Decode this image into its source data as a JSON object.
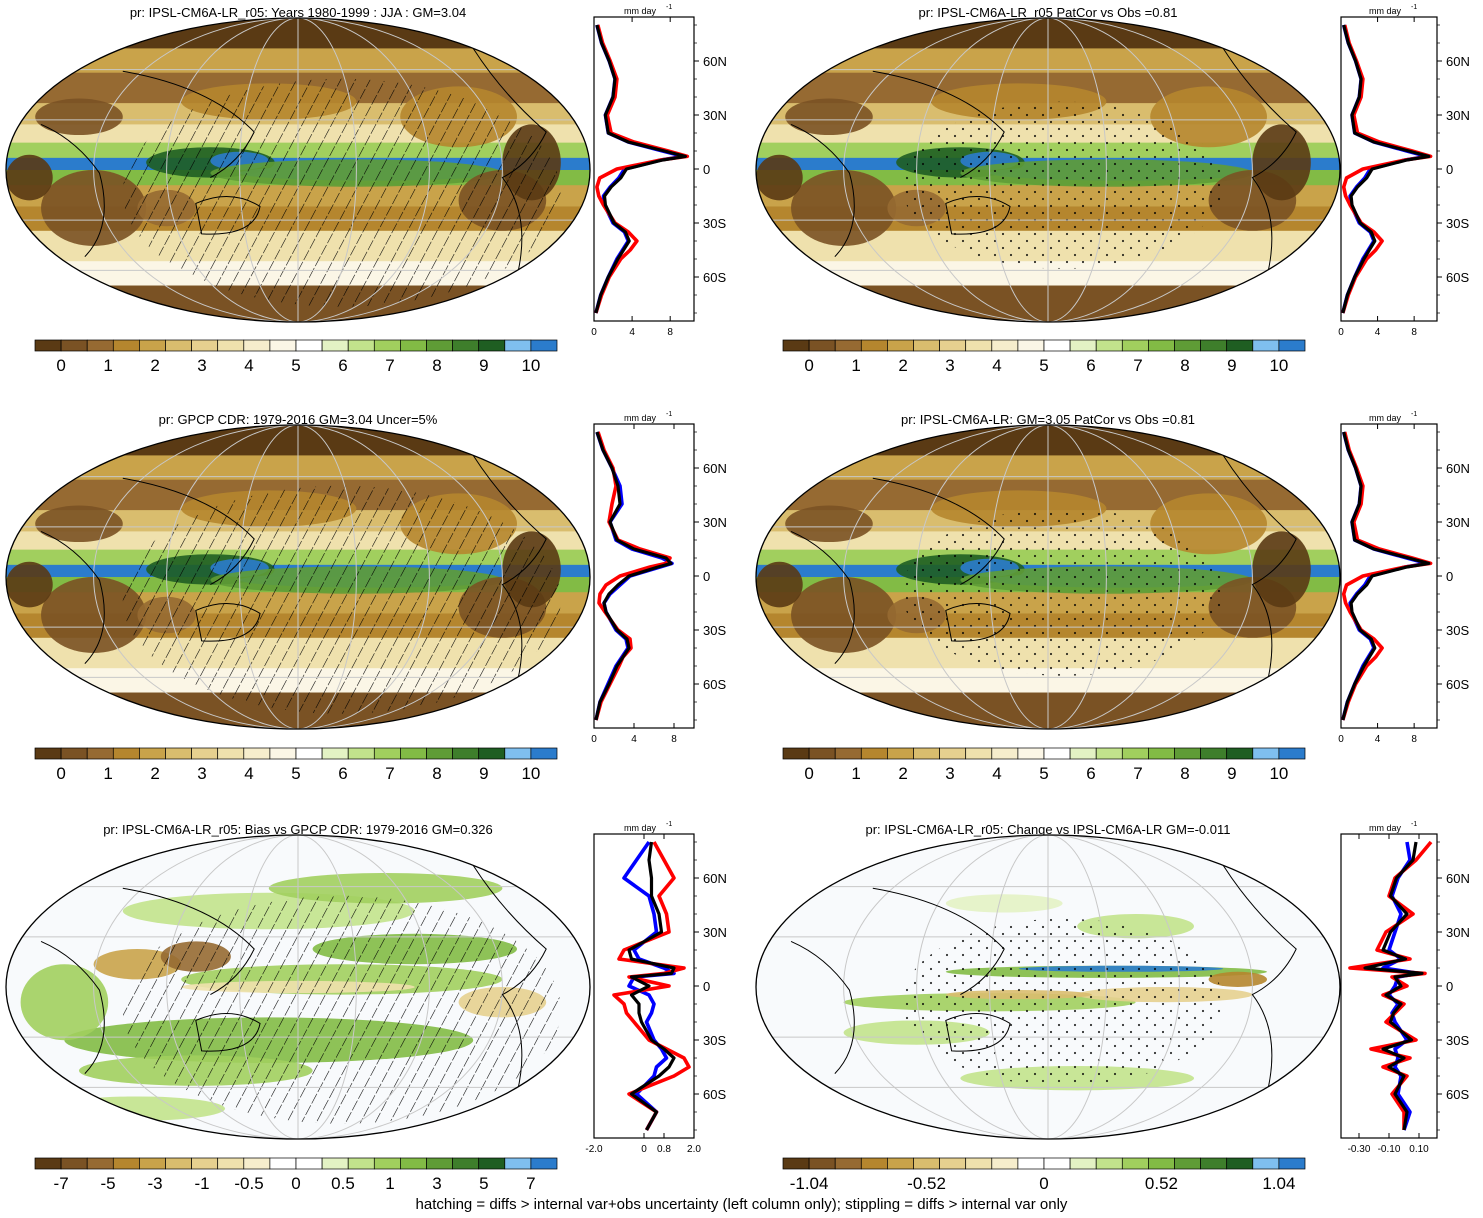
{
  "footer": "hatching = diffs > internal var+obs uncertainty (left column only); stippling = diffs > internal var only",
  "colors": {
    "series_blue": "#0000ff",
    "series_red": "#ff0000",
    "series_black": "#000000",
    "precip_ramp": [
      "#5a3a14",
      "#7a5224",
      "#966a32",
      "#b5862e",
      "#c9a34a",
      "#d9bd6e",
      "#e6d08f",
      "#efe1ad",
      "#f6edcc",
      "#fbf6e6",
      "#ffffff",
      "#e3f2c4",
      "#c2e38c",
      "#a1cf5e",
      "#82bb45",
      "#5f9c36",
      "#3e7e2b",
      "#1f5e22",
      "#7fbfef",
      "#2b7ccc"
    ],
    "diff_ramp": [
      "#5a3a14",
      "#7a5224",
      "#966a32",
      "#b5862e",
      "#c9a34a",
      "#d9bd6e",
      "#e6d08f",
      "#efe1ad",
      "#f6edcc",
      "#ffffff",
      "#ffffff",
      "#e3f2c4",
      "#c2e38c",
      "#a1cf5e",
      "#82bb45",
      "#5f9c36",
      "#3e7e2b",
      "#1f5e22",
      "#7fbfef",
      "#2b7ccc"
    ]
  },
  "chart_data": [
    {
      "type": "heatmap",
      "title": "pr: IPSL-CM6A-LR_r05: Years 1980-1999 : JJA : GM=3.04",
      "colorbar_ticks": [
        "0",
        "1",
        "2",
        "3",
        "4",
        "5",
        "6",
        "7",
        "8",
        "9",
        "10"
      ],
      "colorbar_kind": "precip",
      "pattern": "hatching",
      "profile": {
        "unit_label": "mm day",
        "unit_exp": "-1",
        "lat_ticks": [
          "60N",
          "30N",
          "0",
          "30S",
          "60S"
        ],
        "x_ticks": [
          "0",
          "4",
          "8"
        ],
        "xlim": [
          0,
          10.5
        ],
        "lat": [
          80,
          70,
          60,
          50,
          40,
          30,
          20,
          15,
          10,
          7,
          5,
          0,
          -5,
          -10,
          -15,
          -20,
          -30,
          -35,
          -40,
          -45,
          -50,
          -60,
          -70,
          -80
        ],
        "series": [
          {
            "color": "blue",
            "values": [
              0.3,
              0.8,
              1.6,
              2.2,
              2.0,
              1.2,
              1.5,
              3.6,
              7.2,
              9.4,
              7.0,
              3.2,
              2.6,
              1.7,
              1.0,
              1.1,
              2.0,
              3.2,
              3.6,
              3.0,
              2.4,
              1.5,
              0.7,
              0.2
            ]
          },
          {
            "color": "red",
            "values": [
              0.4,
              0.9,
              1.7,
              2.4,
              2.2,
              1.4,
              1.8,
              4.2,
              7.8,
              9.8,
              7.0,
              2.4,
              0.6,
              0.3,
              0.5,
              1.0,
              2.2,
              3.6,
              4.5,
              3.8,
              2.8,
              1.6,
              0.8,
              0.2
            ]
          },
          {
            "color": "black",
            "values": [
              0.3,
              0.8,
              1.6,
              2.2,
              2.0,
              1.2,
              1.5,
              3.6,
              7.4,
              9.6,
              7.2,
              3.4,
              2.8,
              1.8,
              1.1,
              1.2,
              2.1,
              3.3,
              3.7,
              3.1,
              2.5,
              1.5,
              0.7,
              0.2
            ]
          }
        ]
      }
    },
    {
      "type": "heatmap",
      "title": "pr: IPSL-CM6A-LR_r05 PatCor vs Obs =0.81",
      "colorbar_ticks": [
        "0",
        "1",
        "2",
        "3",
        "4",
        "5",
        "6",
        "7",
        "8",
        "9",
        "10"
      ],
      "colorbar_kind": "precip",
      "pattern": "stipple",
      "profile": {
        "unit_label": "mm day",
        "unit_exp": "-1",
        "lat_ticks": [
          "60N",
          "30N",
          "0",
          "30S",
          "60S"
        ],
        "x_ticks": [
          "0",
          "4",
          "8"
        ],
        "xlim": [
          0,
          10.5
        ],
        "lat": [
          80,
          70,
          60,
          50,
          40,
          30,
          20,
          15,
          10,
          7,
          5,
          0,
          -5,
          -10,
          -15,
          -20,
          -30,
          -35,
          -40,
          -45,
          -50,
          -60,
          -70,
          -80
        ],
        "series": [
          {
            "color": "blue",
            "values": [
              0.3,
              0.8,
              1.6,
              2.2,
              2.0,
              1.2,
              1.5,
              3.6,
              7.2,
              9.4,
              7.0,
              3.2,
              2.6,
              1.7,
              1.0,
              1.1,
              2.0,
              3.2,
              3.6,
              3.0,
              2.4,
              1.5,
              0.7,
              0.2
            ]
          },
          {
            "color": "red",
            "values": [
              0.4,
              0.9,
              1.7,
              2.4,
              2.2,
              1.4,
              1.8,
              4.2,
              7.8,
              9.8,
              7.0,
              2.4,
              0.6,
              0.3,
              0.5,
              1.0,
              2.2,
              3.6,
              4.5,
              3.8,
              2.8,
              1.6,
              0.8,
              0.2
            ]
          },
          {
            "color": "black",
            "values": [
              0.3,
              0.8,
              1.6,
              2.2,
              2.0,
              1.2,
              1.5,
              3.6,
              7.4,
              9.6,
              7.2,
              3.4,
              2.8,
              1.8,
              1.1,
              1.2,
              2.1,
              3.3,
              3.7,
              3.1,
              2.5,
              1.5,
              0.7,
              0.2
            ]
          }
        ]
      }
    },
    {
      "type": "heatmap",
      "title": "pr: GPCP CDR: 1979-2016 GM=3.04 Uncer=5%",
      "colorbar_ticks": [
        "0",
        "1",
        "2",
        "3",
        "4",
        "5",
        "6",
        "7",
        "8",
        "9",
        "10"
      ],
      "colorbar_kind": "precip",
      "pattern": "hatching",
      "profile": {
        "unit_label": "mm day",
        "unit_exp": "-1",
        "lat_ticks": [
          "60N",
          "30N",
          "0",
          "30S",
          "60S"
        ],
        "x_ticks": [
          "0",
          "4",
          "8"
        ],
        "xlim": [
          0,
          10
        ],
        "lat": [
          80,
          70,
          60,
          50,
          40,
          30,
          20,
          15,
          10,
          7,
          5,
          0,
          -5,
          -10,
          -15,
          -20,
          -30,
          -35,
          -40,
          -45,
          -50,
          -60,
          -70,
          -80
        ],
        "series": [
          {
            "color": "blue",
            "values": [
              0.3,
              0.9,
              1.8,
              2.6,
              2.8,
              1.6,
              2.2,
              3.8,
              6.8,
              7.8,
              6.6,
              3.6,
              2.6,
              1.6,
              1.0,
              1.2,
              2.2,
              3.2,
              3.4,
              2.8,
              2.2,
              1.4,
              0.6,
              0.2
            ]
          },
          {
            "color": "red",
            "values": [
              0.4,
              1.0,
              1.9,
              2.2,
              1.8,
              1.5,
              2.4,
              4.6,
              7.6,
              7.2,
              5.6,
              2.6,
              1.2,
              0.6,
              0.5,
              1.1,
              2.4,
              3.6,
              3.7,
              2.9,
              2.5,
              1.6,
              0.7,
              0.2
            ]
          },
          {
            "color": "black",
            "values": [
              0.3,
              0.9,
              1.8,
              2.4,
              2.6,
              1.6,
              2.3,
              4.0,
              7.2,
              7.7,
              6.4,
              3.5,
              2.4,
              1.5,
              1.0,
              1.2,
              2.3,
              3.3,
              3.5,
              2.9,
              2.3,
              1.5,
              0.6,
              0.2
            ]
          }
        ]
      }
    },
    {
      "type": "heatmap",
      "title": "pr: IPSL-CM6A-LR: GM=3.05 PatCor vs Obs =0.81",
      "colorbar_ticks": [
        "0",
        "1",
        "2",
        "3",
        "4",
        "5",
        "6",
        "7",
        "8",
        "9",
        "10"
      ],
      "colorbar_kind": "precip",
      "pattern": "stipple",
      "profile": {
        "unit_label": "mm day",
        "unit_exp": "-1",
        "lat_ticks": [
          "60N",
          "30N",
          "0",
          "30S",
          "60S"
        ],
        "x_ticks": [
          "0",
          "4",
          "8"
        ],
        "xlim": [
          0,
          10.5
        ],
        "lat": [
          80,
          70,
          60,
          50,
          40,
          30,
          20,
          15,
          10,
          7,
          5,
          0,
          -5,
          -10,
          -15,
          -20,
          -30,
          -35,
          -40,
          -45,
          -50,
          -60,
          -70,
          -80
        ],
        "series": [
          {
            "color": "blue",
            "values": [
              0.3,
              0.8,
              1.6,
              2.2,
              2.0,
              1.2,
              1.5,
              3.6,
              7.2,
              9.4,
              7.0,
              3.2,
              2.6,
              1.7,
              1.0,
              1.1,
              2.0,
              3.2,
              3.6,
              3.0,
              2.4,
              1.5,
              0.7,
              0.2
            ]
          },
          {
            "color": "red",
            "values": [
              0.4,
              0.9,
              1.7,
              2.4,
              2.2,
              1.4,
              1.8,
              4.2,
              7.8,
              9.8,
              7.0,
              2.4,
              0.6,
              0.3,
              0.5,
              1.0,
              2.2,
              3.6,
              4.5,
              3.8,
              2.8,
              1.6,
              0.8,
              0.2
            ]
          },
          {
            "color": "black",
            "values": [
              0.3,
              0.8,
              1.6,
              2.2,
              2.0,
              1.2,
              1.5,
              3.6,
              7.4,
              9.6,
              7.2,
              3.4,
              2.8,
              1.8,
              1.1,
              1.2,
              2.1,
              3.3,
              3.7,
              3.1,
              2.5,
              1.5,
              0.7,
              0.2
            ]
          }
        ]
      }
    },
    {
      "type": "heatmap",
      "title": "pr: IPSL-CM6A-LR_r05: Bias vs GPCP CDR: 1979-2016 GM=0.326",
      "colorbar_ticks": [
        "-7",
        "-5",
        "-3",
        "-1",
        "-0.5",
        "0",
        "0.5",
        "1",
        "3",
        "5",
        "7"
      ],
      "colorbar_kind": "diff",
      "pattern": "hatching",
      "profile": {
        "unit_label": "mm day",
        "unit_exp": "-1",
        "lat_ticks": [
          "60N",
          "30N",
          "0",
          "30S",
          "60S"
        ],
        "x_ticks": [
          "-2.0",
          "0",
          "0.8",
          "2.0"
        ],
        "xlim": [
          -2.0,
          2.0
        ],
        "lat": [
          80,
          70,
          60,
          50,
          40,
          30,
          20,
          15,
          10,
          7,
          5,
          0,
          -5,
          -10,
          -15,
          -20,
          -30,
          -35,
          -40,
          -45,
          -50,
          -60,
          -70,
          -80
        ],
        "series": [
          {
            "color": "blue",
            "values": [
              0.2,
              -0.3,
              -0.8,
              0.2,
              0.4,
              0.5,
              -0.4,
              -0.2,
              0.8,
              1.2,
              -0.4,
              -0.6,
              0.2,
              0.4,
              0.3,
              0.1,
              0.4,
              0.7,
              0.9,
              0.5,
              0.4,
              -0.3,
              0.5,
              0.1
            ]
          },
          {
            "color": "red",
            "values": [
              0.4,
              0.8,
              1.2,
              0.6,
              0.9,
              1.0,
              -0.8,
              -1.0,
              1.6,
              0.8,
              -0.6,
              1.0,
              -1.2,
              -0.8,
              -0.7,
              -0.4,
              0.2,
              0.9,
              1.6,
              1.8,
              1.2,
              -0.6,
              0.5,
              0.1
            ]
          },
          {
            "color": "black",
            "values": [
              0.3,
              0.2,
              0.3,
              0.3,
              0.6,
              0.7,
              -0.6,
              -0.5,
              1.2,
              1.1,
              -0.5,
              0.2,
              -0.5,
              -0.2,
              -0.2,
              -0.1,
              0.3,
              0.8,
              1.2,
              1.0,
              0.6,
              -0.5,
              0.5,
              0.1
            ]
          }
        ]
      }
    },
    {
      "type": "heatmap",
      "title": "pr: IPSL-CM6A-LR_r05: Change vs IPSL-CM6A-LR GM=-0.011",
      "colorbar_ticks": [
        "-1.04",
        "-0.52",
        "0",
        "0.52",
        "1.04"
      ],
      "colorbar_kind": "diff",
      "pattern": "stipple",
      "profile": {
        "unit_label": "mm day",
        "unit_exp": "-1",
        "lat_ticks": [
          "60N",
          "30N",
          "0",
          "30S",
          "60S"
        ],
        "x_ticks": [
          "-0.30",
          "-0.10",
          "0.10"
        ],
        "xlim": [
          -0.42,
          0.22
        ],
        "lat": [
          80,
          70,
          60,
          50,
          40,
          30,
          20,
          15,
          10,
          7,
          5,
          0,
          -5,
          -10,
          -15,
          -20,
          -30,
          -35,
          -40,
          -45,
          -50,
          -60,
          -70,
          -80
        ],
        "series": [
          {
            "color": "blue",
            "values": [
              0.02,
              0.04,
              -0.04,
              -0.08,
              -0.02,
              -0.06,
              -0.1,
              -0.02,
              -0.14,
              0.1,
              -0.04,
              -0.06,
              -0.1,
              -0.04,
              -0.08,
              -0.06,
              0.02,
              -0.06,
              -0.04,
              -0.06,
              -0.02,
              -0.04,
              0.04,
              0.0
            ]
          },
          {
            "color": "red",
            "values": [
              0.18,
              0.08,
              -0.06,
              -0.1,
              0.06,
              -0.12,
              -0.18,
              0.04,
              -0.36,
              0.14,
              -0.08,
              0.02,
              -0.14,
              0.0,
              -0.06,
              -0.12,
              0.08,
              -0.22,
              0.04,
              -0.14,
              0.02,
              -0.08,
              0.0,
              0.0
            ]
          },
          {
            "color": "black",
            "values": [
              0.08,
              0.06,
              -0.05,
              -0.09,
              0.02,
              -0.09,
              -0.14,
              0.01,
              -0.26,
              0.12,
              -0.06,
              -0.02,
              -0.12,
              -0.02,
              -0.07,
              -0.09,
              0.05,
              -0.14,
              0.0,
              -0.1,
              0.0,
              -0.06,
              0.02,
              0.0
            ]
          }
        ]
      }
    }
  ]
}
